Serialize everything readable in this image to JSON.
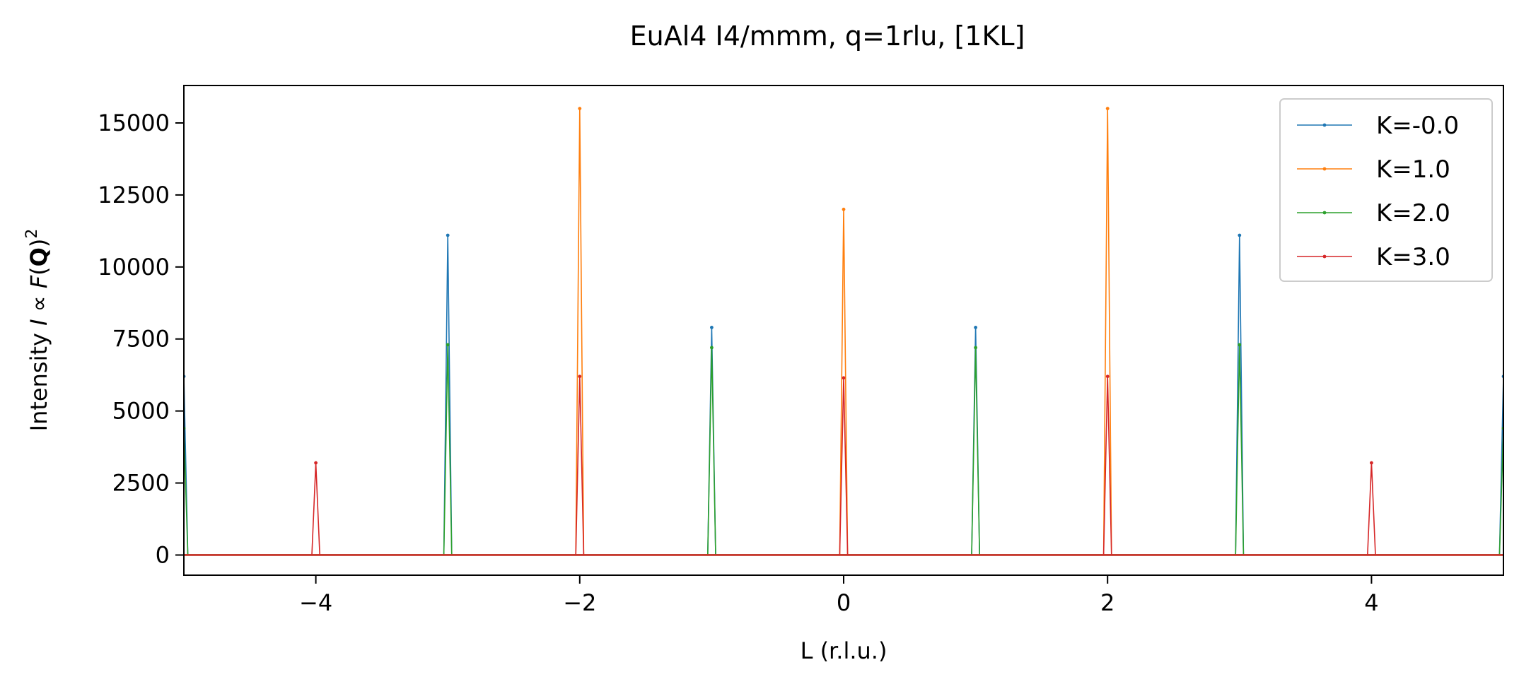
{
  "chart_data": {
    "type": "line",
    "title": "EuAl4 I4/mmm, q=1rlu, [1KL]",
    "xlabel": "L (r.l.u.)",
    "ylabel": {
      "prefix": "Intensity ",
      "italic_i": "I",
      "propto": " ∝ ",
      "italic_f": "F",
      "open": "(",
      "bold_q": "Q",
      "close": ")",
      "sup": "2"
    },
    "xlim": [
      -5,
      5
    ],
    "ylim": [
      -700,
      16300
    ],
    "xticks": [
      -4,
      -2,
      0,
      2,
      4
    ],
    "xtick_labels": [
      "−4",
      "−2",
      "0",
      "2",
      "4"
    ],
    "yticks": [
      0,
      2500,
      5000,
      7500,
      10000,
      12500,
      15000
    ],
    "ytick_labels": [
      "0",
      "2500",
      "5000",
      "7500",
      "10000",
      "12500",
      "15000"
    ],
    "legend_position": "top-right",
    "grid": false,
    "series": [
      {
        "name": "K=-0.0",
        "color": "#1f77b4",
        "peaks": [
          {
            "x": -5,
            "y": 6200
          },
          {
            "x": -3,
            "y": 11100
          },
          {
            "x": -1,
            "y": 7900
          },
          {
            "x": 1,
            "y": 7900
          },
          {
            "x": 3,
            "y": 11100
          },
          {
            "x": 5,
            "y": 6200
          }
        ]
      },
      {
        "name": "K=1.0",
        "color": "#ff7f0e",
        "peaks": [
          {
            "x": -2,
            "y": 15500
          },
          {
            "x": 0,
            "y": 12000
          },
          {
            "x": 2,
            "y": 15500
          }
        ]
      },
      {
        "name": "K=2.0",
        "color": "#2ca02c",
        "peaks": [
          {
            "x": -5,
            "y": 4400
          },
          {
            "x": -3,
            "y": 7300
          },
          {
            "x": -1,
            "y": 7200
          },
          {
            "x": 1,
            "y": 7200
          },
          {
            "x": 3,
            "y": 7300
          },
          {
            "x": 5,
            "y": 4400
          }
        ]
      },
      {
        "name": "K=3.0",
        "color": "#d62728",
        "peaks": [
          {
            "x": -4,
            "y": 3200
          },
          {
            "x": -2,
            "y": 6200
          },
          {
            "x": 0,
            "y": 6150
          },
          {
            "x": 2,
            "y": 6200
          },
          {
            "x": 4,
            "y": 3200
          }
        ]
      }
    ]
  }
}
